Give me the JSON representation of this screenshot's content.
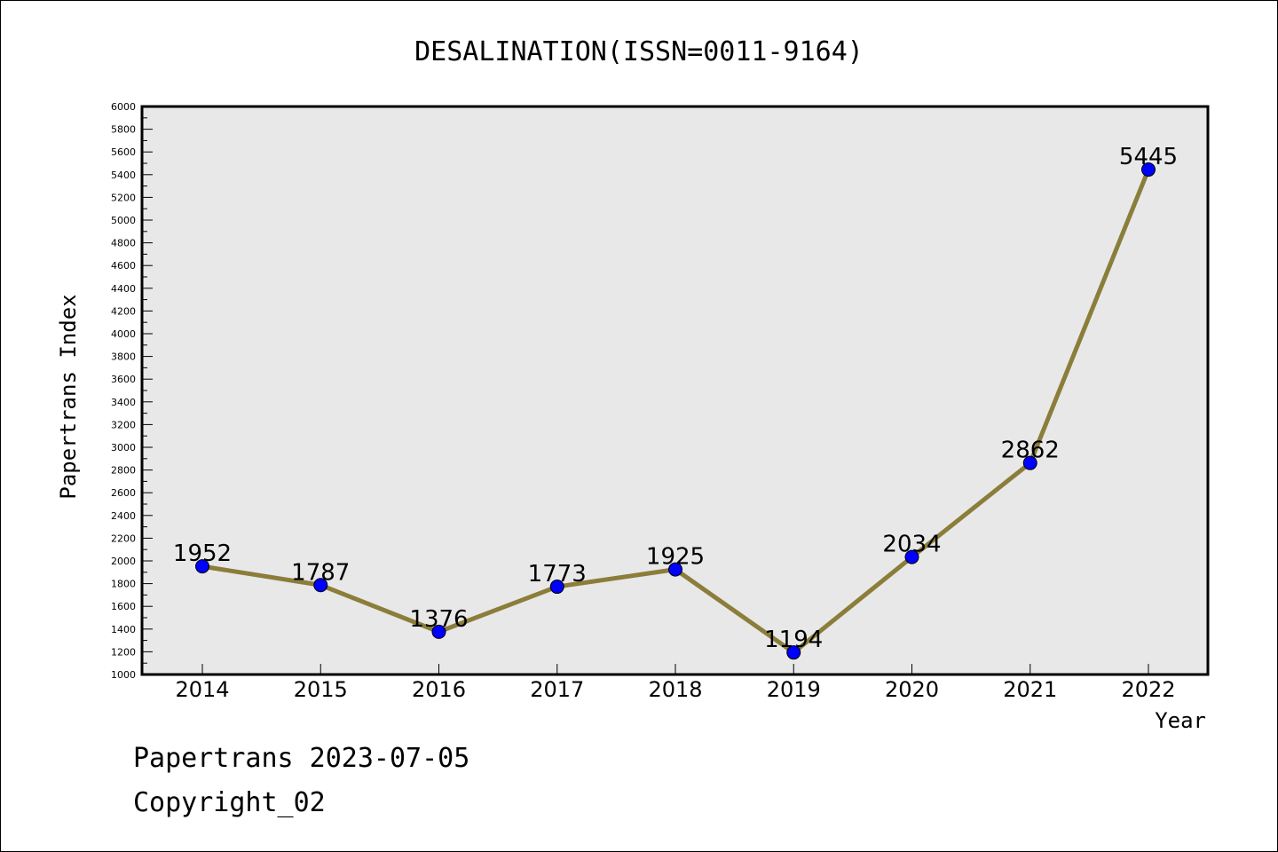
{
  "chart_data": {
    "type": "line",
    "title": "DESALINATION(ISSN=0011-9164)",
    "xlabel": "Year",
    "ylabel": "Papertrans Index",
    "categories": [
      "2014",
      "2015",
      "2016",
      "2017",
      "2018",
      "2019",
      "2020",
      "2021",
      "2022"
    ],
    "series": [
      {
        "values": [
          1952,
          1787,
          1376,
          1773,
          1925,
          1194,
          2034,
          2862,
          5445
        ]
      }
    ],
    "data_labels": [
      "1952",
      "1787",
      "1376",
      "1773",
      "1925",
      "1194",
      "2034",
      "2862",
      "5445"
    ],
    "ylim": [
      1000,
      6000
    ],
    "ytick_labels": [
      "1000",
      "1200",
      "1400",
      "1600",
      "1800",
      "2000",
      "2200",
      "2400",
      "2600",
      "2800",
      "3000",
      "3200",
      "3400",
      "3600",
      "3800",
      "4000",
      "4200",
      "4400",
      "4600",
      "4800",
      "5000",
      "5200",
      "5400",
      "5600",
      "5800",
      "6000"
    ],
    "grid": false,
    "legend": "none",
    "colors": {
      "line": "#8B7D3A",
      "marker": "#0000FF",
      "plot_background": "#E8E8E8"
    }
  },
  "footer": {
    "line1": "Papertrans 2023-07-05",
    "line2": "Copyright_02"
  }
}
